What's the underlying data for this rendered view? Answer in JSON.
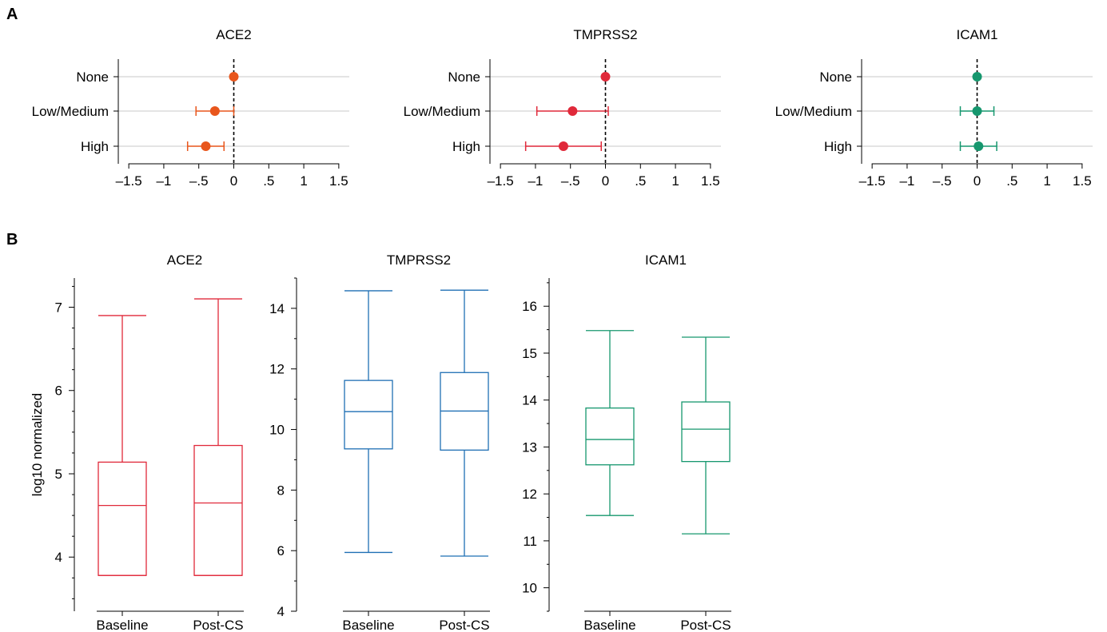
{
  "panels": {
    "a": "A",
    "b": "B"
  },
  "chart_data": [
    {
      "type": "scatter",
      "subtype": "forest",
      "panel": "A",
      "title": "ACE2",
      "color": "#e8561c",
      "categories": [
        "None",
        "Low/Medium",
        "High"
      ],
      "estimates": [
        0,
        -0.27,
        -0.4
      ],
      "ci_low": [
        null,
        -0.54,
        -0.66
      ],
      "ci_high": [
        null,
        0,
        -0.14
      ],
      "xlim": [
        -1.65,
        1.65
      ],
      "xticks": [
        -1.5,
        -1,
        -0.5,
        0,
        0.5,
        1,
        1.5
      ],
      "xtick_labels": [
        "–1.5",
        "–1",
        "–.5",
        "0",
        ".5",
        "1",
        "1.5"
      ],
      "reference_line": 0,
      "grid": "horizontal"
    },
    {
      "type": "scatter",
      "subtype": "forest",
      "panel": "A",
      "title": "TMPRSS2",
      "color": "#e0293a",
      "categories": [
        "None",
        "Low/Medium",
        "High"
      ],
      "estimates": [
        0,
        -0.47,
        -0.6
      ],
      "ci_low": [
        null,
        -0.98,
        -1.14
      ],
      "ci_high": [
        null,
        0.04,
        -0.06
      ],
      "xlim": [
        -1.65,
        1.65
      ],
      "xticks": [
        -1.5,
        -1,
        -0.5,
        0,
        0.5,
        1,
        1.5
      ],
      "xtick_labels": [
        "–1.5",
        "–1",
        "–.5",
        "0",
        ".5",
        "1",
        "1.5"
      ],
      "reference_line": 0,
      "grid": "horizontal"
    },
    {
      "type": "scatter",
      "subtype": "forest",
      "panel": "A",
      "title": "ICAM1",
      "color": "#16976e",
      "categories": [
        "None",
        "Low/Medium",
        "High"
      ],
      "estimates": [
        0,
        0,
        0.02
      ],
      "ci_low": [
        null,
        -0.24,
        -0.24
      ],
      "ci_high": [
        null,
        0.24,
        0.28
      ],
      "xlim": [
        -1.65,
        1.65
      ],
      "xticks": [
        -1.5,
        -1,
        -0.5,
        0,
        0.5,
        1,
        1.5
      ],
      "xtick_labels": [
        "–1.5",
        "–1",
        "–.5",
        "0",
        ".5",
        "1",
        "1.5"
      ],
      "reference_line": 0,
      "grid": "horizontal"
    },
    {
      "type": "box",
      "panel": "B",
      "title": "ACE2",
      "ylabel": "log10 normalized",
      "color": "#e0293a",
      "categories": [
        "Baseline",
        "Post-CS"
      ],
      "boxes": [
        {
          "whisker_low": 3.78,
          "q1": 3.78,
          "median": 4.62,
          "q3": 5.14,
          "whisker_high": 6.9
        },
        {
          "whisker_low": 3.78,
          "q1": 3.78,
          "median": 4.65,
          "q3": 5.34,
          "whisker_high": 7.1
        }
      ],
      "ylim": [
        3.35,
        7.35
      ],
      "yticks": [
        4,
        5,
        6,
        7
      ],
      "minor_step": 0.25
    },
    {
      "type": "box",
      "panel": "B",
      "title": "TMPRSS2",
      "color": "#1f6fb4",
      "categories": [
        "Baseline",
        "Post-CS"
      ],
      "boxes": [
        {
          "whisker_low": 5.94,
          "q1": 9.36,
          "median": 10.59,
          "q3": 11.62,
          "whisker_high": 14.58
        },
        {
          "whisker_low": 5.82,
          "q1": 9.32,
          "median": 10.61,
          "q3": 11.88,
          "whisker_high": 14.6
        }
      ],
      "ylim": [
        4,
        15
      ],
      "yticks": [
        4,
        6,
        8,
        10,
        12,
        14
      ],
      "minor_step": 1
    },
    {
      "type": "box",
      "panel": "B",
      "title": "ICAM1",
      "color": "#16976e",
      "categories": [
        "Baseline",
        "Post-CS"
      ],
      "boxes": [
        {
          "whisker_low": 11.54,
          "q1": 12.62,
          "median": 13.16,
          "q3": 13.83,
          "whisker_high": 15.48
        },
        {
          "whisker_low": 11.15,
          "q1": 12.69,
          "median": 13.38,
          "q3": 13.96,
          "whisker_high": 15.34
        }
      ],
      "ylim": [
        9.5,
        16.6
      ],
      "yticks": [
        10,
        11,
        12,
        13,
        14,
        15,
        16
      ],
      "minor_step": 0.5
    }
  ]
}
